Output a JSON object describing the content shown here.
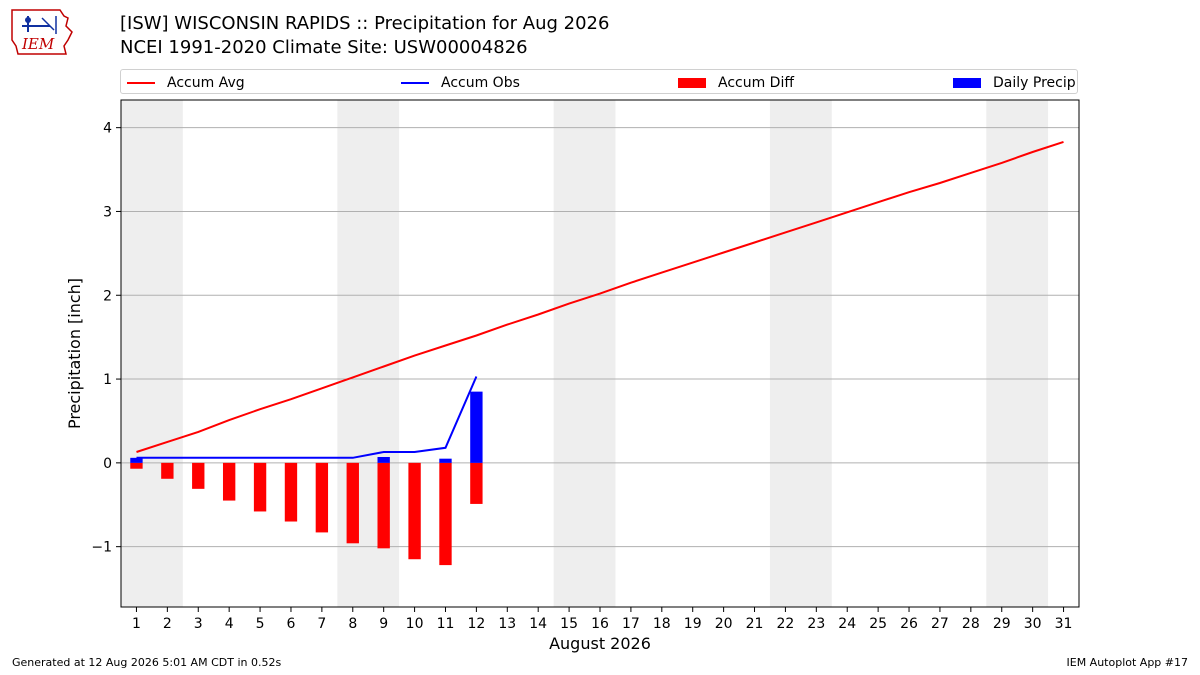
{
  "header": {
    "title_line1": "[ISW] WISCONSIN RAPIDS :: Precipitation for Aug 2026",
    "title_line2": "NCEI 1991-2020 Climate Site: USW00004826"
  },
  "logo": {
    "text": "IEM"
  },
  "footer": {
    "generated": "Generated at 12 Aug 2026 5:01 AM CDT in 0.52s",
    "app": "IEM Autoplot App #17"
  },
  "chart_data": {
    "type": "bar",
    "xlabel": "August 2026",
    "ylabel": "Precipitation [inch]",
    "xlim": [
      0.5,
      31.5
    ],
    "ylim": [
      -1.72,
      4.33
    ],
    "yticks": [
      -1,
      0,
      1,
      2,
      3,
      4
    ],
    "ytick_labels": [
      "−1",
      "0",
      "1",
      "2",
      "3",
      "4"
    ],
    "x_ticks": [
      1,
      2,
      3,
      4,
      5,
      6,
      7,
      8,
      9,
      10,
      11,
      12,
      13,
      14,
      15,
      16,
      17,
      18,
      19,
      20,
      21,
      22,
      23,
      24,
      25,
      26,
      27,
      28,
      29,
      30,
      31
    ],
    "weekend_bands": [
      [
        0.5,
        2.5
      ],
      [
        7.5,
        9.5
      ],
      [
        14.5,
        16.5
      ],
      [
        21.5,
        23.5
      ],
      [
        28.5,
        30.5
      ]
    ],
    "grid": true,
    "legend_position": "top",
    "colors": {
      "accum_avg": "#ff0000",
      "accum_obs": "#0000ff",
      "accum_diff": "#ff0000",
      "daily_precip": "#0000ff",
      "band": "#eeeeee",
      "grid": "#b0b0b0"
    },
    "series": [
      {
        "name": "Accum Avg",
        "kind": "line",
        "x": [
          1,
          2,
          3,
          4,
          5,
          6,
          7,
          8,
          9,
          10,
          11,
          12,
          13,
          14,
          15,
          16,
          17,
          18,
          19,
          20,
          21,
          22,
          23,
          24,
          25,
          26,
          27,
          28,
          29,
          30,
          31
        ],
        "values": [
          0.13,
          0.25,
          0.37,
          0.51,
          0.64,
          0.76,
          0.89,
          1.02,
          1.15,
          1.28,
          1.4,
          1.52,
          1.65,
          1.77,
          1.9,
          2.02,
          2.15,
          2.27,
          2.39,
          2.51,
          2.63,
          2.75,
          2.87,
          2.99,
          3.11,
          3.23,
          3.34,
          3.46,
          3.58,
          3.71,
          3.83
        ]
      },
      {
        "name": "Accum Obs",
        "kind": "line",
        "x": [
          1,
          2,
          3,
          4,
          5,
          6,
          7,
          8,
          9,
          10,
          11,
          12
        ],
        "values": [
          0.06,
          0.06,
          0.06,
          0.06,
          0.06,
          0.06,
          0.06,
          0.06,
          0.13,
          0.13,
          0.18,
          1.03
        ]
      },
      {
        "name": "Accum Diff",
        "kind": "bar",
        "x": [
          1,
          2,
          3,
          4,
          5,
          6,
          7,
          8,
          9,
          10,
          11,
          12
        ],
        "values": [
          -0.07,
          -0.19,
          -0.31,
          -0.45,
          -0.58,
          -0.7,
          -0.83,
          -0.96,
          -1.02,
          -1.15,
          -1.22,
          -0.49
        ]
      },
      {
        "name": "Daily Precip",
        "kind": "bar",
        "x": [
          1,
          2,
          3,
          4,
          5,
          6,
          7,
          8,
          9,
          10,
          11,
          12
        ],
        "values": [
          0.06,
          0,
          0,
          0,
          0,
          0,
          0,
          0,
          0.07,
          0,
          0.05,
          0.85
        ]
      }
    ]
  }
}
